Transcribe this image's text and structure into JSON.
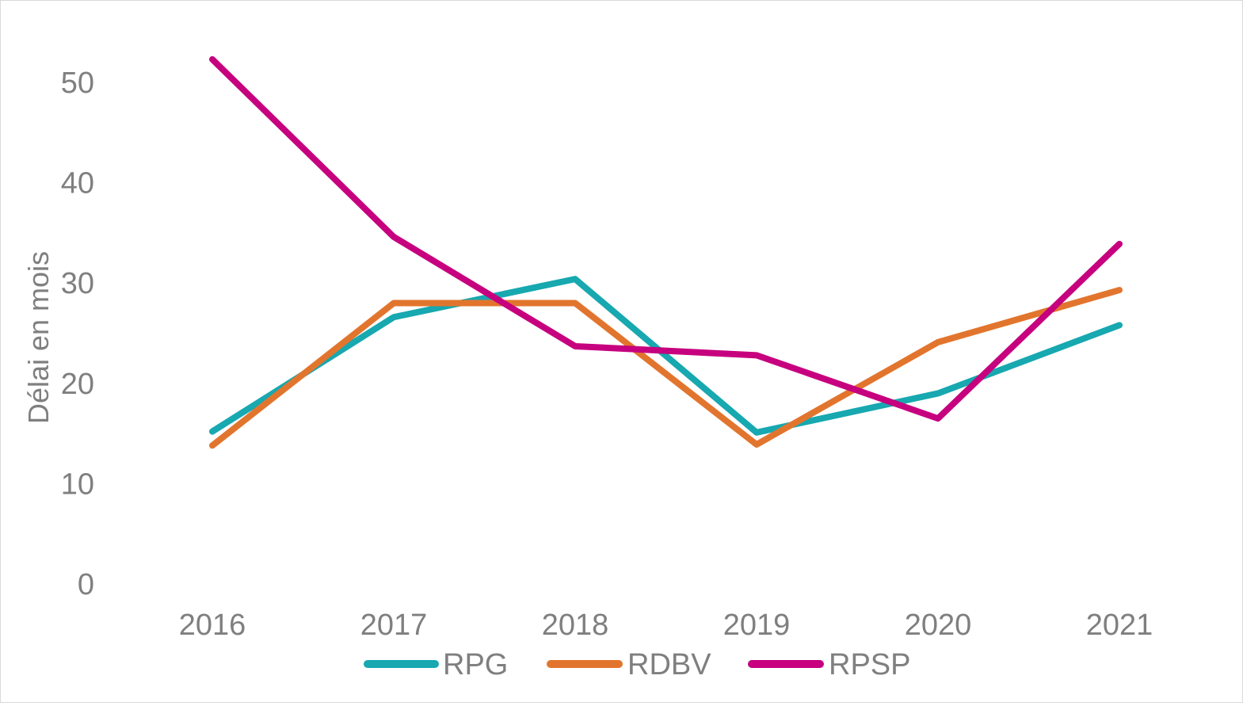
{
  "chart_data": {
    "type": "line",
    "title": "",
    "xlabel": "",
    "ylabel": "Délai en mois",
    "categories": [
      "2016",
      "2017",
      "2018",
      "2019",
      "2020",
      "2021"
    ],
    "ylim": [
      0,
      50
    ],
    "yticks": [
      "0",
      "10",
      "20",
      "30",
      "40",
      "50"
    ],
    "grid": false,
    "legend_position": "bottom",
    "series": [
      {
        "name": "RPG",
        "color": "#17a8b0",
        "values": [
          15.2,
          26.6,
          30.4,
          15.1,
          19.0,
          25.8
        ]
      },
      {
        "name": "RDBV",
        "color": "#e2752e",
        "values": [
          13.8,
          28.0,
          28.0,
          13.9,
          24.1,
          29.3
        ]
      },
      {
        "name": "RPSP",
        "color": "#c6007e",
        "values": [
          52.3,
          34.6,
          23.7,
          22.8,
          16.5,
          33.9
        ]
      }
    ]
  }
}
